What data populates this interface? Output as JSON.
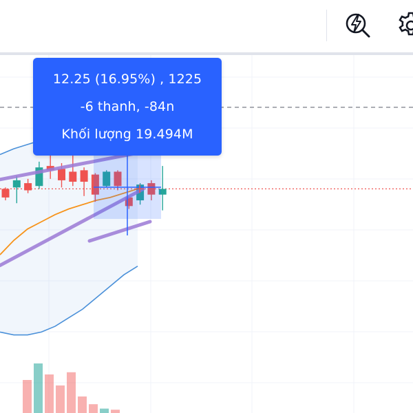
{
  "toolbar": {
    "buttons": [
      {
        "name": "alert-button",
        "icon": "lightning-magnifier-icon"
      },
      {
        "name": "settings-button",
        "icon": "gear-icon"
      }
    ]
  },
  "measure_tooltip": {
    "price_change": "12.25 (16.95%) , 1225",
    "bars_time": "-6 thanh, -84n",
    "volume": "Khối lượng 19.494M"
  },
  "colors": {
    "accent": "#2962ff",
    "bull_candle": "#26a69a",
    "bear_candle": "#ef5350",
    "bollinger_band": "#4a90d9",
    "moving_average": "#f7931a",
    "channel": "#9c7ad6",
    "price_line": "#ef5350"
  },
  "chart_data": {
    "type": "candlestick",
    "candles": [
      {
        "open": 2.0,
        "close": 1.4,
        "high": 2.1,
        "low": 1.2
      },
      {
        "open": 2.1,
        "close": 2.6,
        "high": 2.9,
        "low": 1.0
      },
      {
        "open": 2.4,
        "close": 1.9,
        "high": 2.7,
        "low": 1.7
      },
      {
        "open": 2.2,
        "close": 3.5,
        "high": 3.9,
        "low": 2.0
      },
      {
        "open": 3.6,
        "close": 3.3,
        "high": 4.6,
        "low": 2.7
      },
      {
        "open": 3.4,
        "close": 2.6,
        "high": 3.8,
        "low": 2.1
      },
      {
        "open": 3.2,
        "close": 2.5,
        "high": 4.4,
        "low": 2.2
      },
      {
        "open": 3.3,
        "close": 2.5,
        "high": 3.5,
        "low": 1.5
      },
      {
        "open": 3.0,
        "close": 1.6,
        "high": 3.1,
        "low": 1.1
      },
      {
        "open": 2.2,
        "close": 3.2,
        "high": 3.3,
        "low": 2.1
      },
      {
        "open": 3.2,
        "close": 2.2,
        "high": 3.3,
        "low": 1.9
      },
      {
        "open": 1.4,
        "close": 0.8,
        "high": 1.5,
        "low": 0.6
      },
      {
        "open": 1.2,
        "close": 2.3,
        "high": 2.4,
        "low": 0.9
      },
      {
        "open": 2.4,
        "close": 1.6,
        "high": 2.6,
        "low": 1.2
      },
      {
        "open": 1.6,
        "close": 2.0,
        "high": 3.6,
        "low": 0.5
      }
    ],
    "volume": [
      {
        "value": 3,
        "dir": "bear"
      },
      {
        "value": 4.5,
        "dir": "bull"
      },
      {
        "value": 3.5,
        "dir": "bear"
      },
      {
        "value": 2.5,
        "dir": "bear"
      },
      {
        "value": 3.7,
        "dir": "bear"
      },
      {
        "value": 1.5,
        "dir": "bear"
      },
      {
        "value": 0.8,
        "dir": "bear"
      },
      {
        "value": 0.4,
        "dir": "bull"
      },
      {
        "value": 0.3,
        "dir": "bear"
      }
    ],
    "bollinger_upper": [
      4.4,
      4.8,
      5.1,
      5.4,
      5.5,
      5.6,
      5.5,
      5.4,
      5.2,
      5.0,
      4.8
    ],
    "bollinger_lower": [
      -8.0,
      -8.2,
      -8.2,
      -8.0,
      -7.6,
      -7.0,
      -6.4,
      -5.6,
      -4.8,
      -4.0,
      -3.4
    ],
    "moving_average": [
      -2.6,
      -1.6,
      -0.8,
      -0.3,
      0.2,
      0.6,
      0.9,
      1.2,
      1.4,
      1.7,
      2.0
    ],
    "channel_upper": [
      [
        0,
        2.8
      ],
      [
        19,
        5.6
      ]
    ],
    "channel_lower": [
      [
        0,
        -3.2
      ],
      [
        19,
        1.6
      ]
    ],
    "current_price": 2.0,
    "dashed_level": 7.7
  }
}
